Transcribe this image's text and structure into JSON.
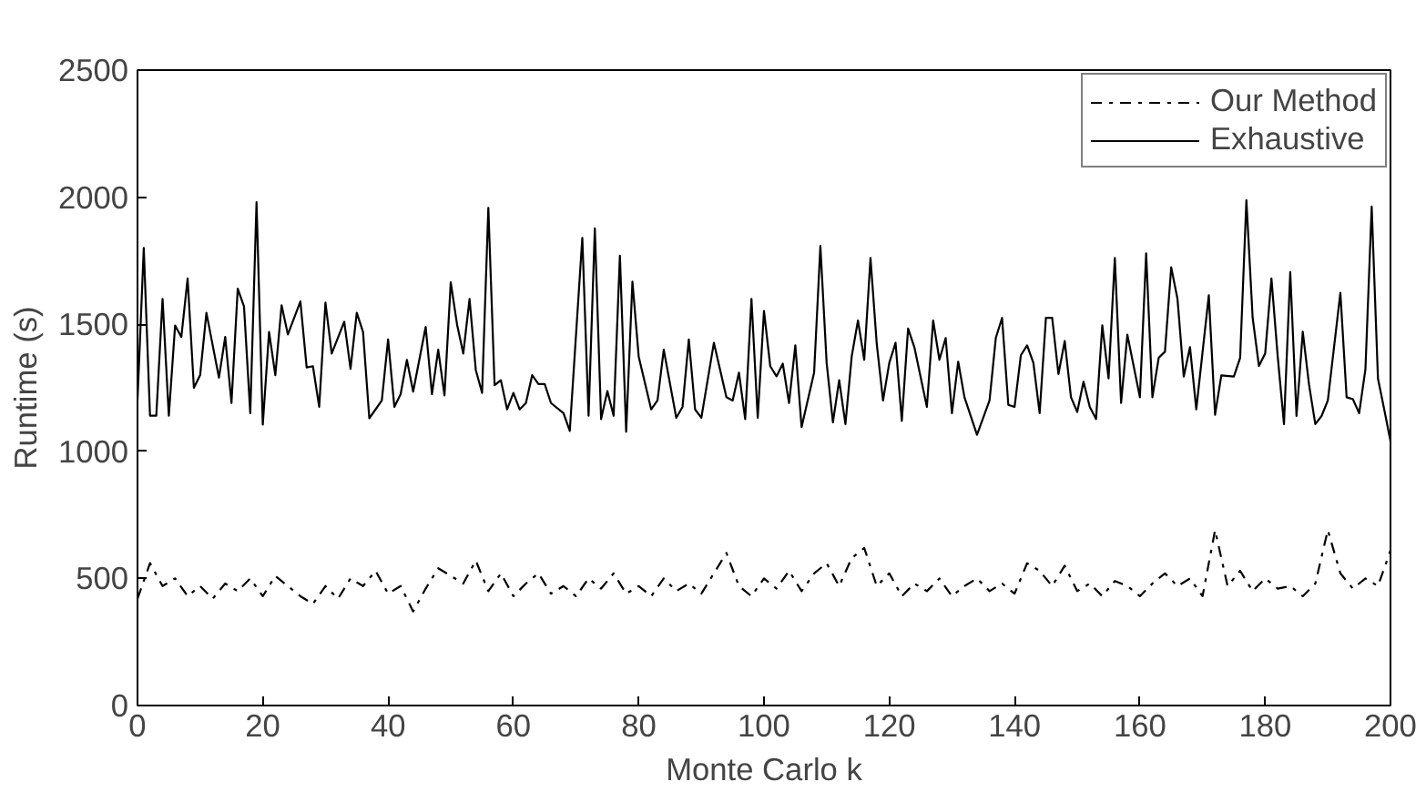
{
  "chart_data": {
    "type": "line",
    "xlabel": "Monte Carlo k",
    "ylabel": "Runtime (s)",
    "xlim": [
      0,
      200
    ],
    "xticks": [
      0,
      20,
      40,
      60,
      80,
      100,
      120,
      140,
      160,
      180,
      200
    ],
    "ylim": [
      0,
      2500
    ],
    "yticks": [
      0,
      500,
      1000,
      1500,
      2000,
      2500
    ],
    "grid": false,
    "legend": "top right",
    "marker": "none",
    "series": [
      {
        "name": "Our Method",
        "color": "#000000",
        "line_style": "dashdot",
        "x": [
          0,
          2,
          4,
          6,
          8,
          10,
          12,
          14,
          16,
          18,
          20,
          22,
          24,
          26,
          28,
          30,
          32,
          34,
          36,
          38,
          40,
          42,
          44,
          46,
          48,
          50,
          52,
          54,
          56,
          58,
          60,
          62,
          64,
          66,
          68,
          70,
          72,
          74,
          76,
          78,
          80,
          82,
          84,
          86,
          88,
          90,
          92,
          94,
          96,
          98,
          100,
          102,
          104,
          106,
          108,
          110,
          112,
          114,
          116,
          118,
          120,
          122,
          124,
          126,
          128,
          130,
          132,
          134,
          136,
          138,
          140,
          142,
          144,
          146,
          148,
          150,
          152,
          154,
          156,
          158,
          160,
          162,
          164,
          166,
          168,
          170,
          172,
          174,
          176,
          178,
          180,
          182,
          184,
          186,
          188,
          190,
          192,
          194,
          196,
          198,
          200
        ],
        "values": [
          420,
          560,
          470,
          500,
          430,
          470,
          420,
          480,
          450,
          500,
          430,
          510,
          470,
          430,
          400,
          470,
          420,
          500,
          470,
          530,
          440,
          470,
          370,
          460,
          540,
          510,
          480,
          570,
          450,
          520,
          430,
          480,
          520,
          440,
          470,
          430,
          500,
          460,
          520,
          440,
          470,
          430,
          500,
          450,
          480,
          440,
          520,
          600,
          470,
          430,
          500,
          460,
          530,
          450,
          520,
          560,
          470,
          580,
          620,
          470,
          520,
          430,
          480,
          450,
          500,
          430,
          470,
          500,
          450,
          480,
          440,
          560,
          530,
          470,
          550,
          450,
          480,
          430,
          490,
          470,
          430,
          480,
          520,
          470,
          500,
          430,
          690,
          470,
          530,
          450,
          500,
          460,
          470,
          430,
          480,
          690,
          520,
          460,
          500,
          470,
          610
        ]
      },
      {
        "name": "Exhaustive",
        "color": "#000000",
        "line_style": "solid",
        "x": [
          0,
          1,
          2,
          3,
          4,
          5,
          6,
          7,
          8,
          9,
          10,
          11,
          13,
          14,
          15,
          16,
          17,
          18,
          19,
          20,
          21,
          22,
          23,
          24,
          26,
          27,
          28,
          29,
          30,
          31,
          33,
          34,
          35,
          36,
          37,
          39,
          40,
          41,
          42,
          43,
          44,
          46,
          47,
          48,
          49,
          50,
          51,
          52,
          53,
          54,
          55,
          56,
          57,
          58,
          59,
          60,
          61,
          62,
          63,
          64,
          65,
          66,
          68,
          69,
          71,
          72,
          73,
          74,
          75,
          76,
          77,
          78,
          79,
          80,
          82,
          83,
          84,
          86,
          87,
          88,
          89,
          90,
          92,
          94,
          95,
          96,
          97,
          98,
          99,
          100,
          101,
          102,
          103,
          104,
          105,
          106,
          108,
          109,
          110,
          111,
          112,
          113,
          114,
          115,
          116,
          117,
          118,
          119,
          120,
          121,
          122,
          123,
          124,
          126,
          127,
          128,
          129,
          130,
          131,
          132,
          134,
          136,
          137,
          138,
          139,
          140,
          141,
          142,
          143,
          144,
          145,
          146,
          147,
          148,
          149,
          150,
          151,
          152,
          153,
          154,
          155,
          156,
          157,
          158,
          160,
          161,
          162,
          163,
          164,
          165,
          166,
          167,
          168,
          169,
          171,
          172,
          173,
          175,
          176,
          177,
          178,
          179,
          180,
          181,
          182,
          183,
          184,
          185,
          186,
          187,
          188,
          189,
          190,
          192,
          193,
          194,
          195,
          196,
          197,
          198,
          199,
          200
        ],
        "values": [
          1200,
          1800,
          1140,
          1140,
          1600,
          1140,
          1495,
          1450,
          1680,
          1250,
          1300,
          1545,
          1290,
          1450,
          1190,
          1640,
          1570,
          1150,
          1980,
          1105,
          1470,
          1300,
          1575,
          1460,
          1590,
          1330,
          1335,
          1175,
          1585,
          1385,
          1510,
          1325,
          1545,
          1470,
          1130,
          1200,
          1440,
          1175,
          1225,
          1360,
          1235,
          1490,
          1225,
          1400,
          1220,
          1665,
          1500,
          1385,
          1600,
          1320,
          1230,
          1958,
          1260,
          1280,
          1165,
          1230,
          1165,
          1190,
          1300,
          1265,
          1265,
          1190,
          1150,
          1080,
          1840,
          1140,
          1877,
          1127,
          1237,
          1140,
          1770,
          1077,
          1668,
          1373,
          1165,
          1200,
          1400,
          1132,
          1175,
          1440,
          1165,
          1132,
          1427,
          1213,
          1200,
          1310,
          1127,
          1600,
          1132,
          1552,
          1335,
          1295,
          1345,
          1190,
          1417,
          1095,
          1310,
          1808,
          1348,
          1114,
          1280,
          1107,
          1373,
          1515,
          1360,
          1761,
          1422,
          1200,
          1348,
          1427,
          1120,
          1483,
          1410,
          1175,
          1515,
          1360,
          1446,
          1150,
          1353,
          1213,
          1065,
          1200,
          1446,
          1525,
          1183,
          1175,
          1378,
          1417,
          1348,
          1150,
          1525,
          1525,
          1304,
          1434,
          1213,
          1155,
          1274,
          1175,
          1127,
          1496,
          1287,
          1761,
          1190,
          1459,
          1213,
          1779,
          1213,
          1368,
          1392,
          1724,
          1600,
          1294,
          1410,
          1165,
          1614,
          1144,
          1299,
          1294,
          1368,
          1988,
          1525,
          1336,
          1385,
          1680,
          1373,
          1107,
          1705,
          1139,
          1471,
          1262,
          1107,
          1139,
          1200,
          1624,
          1213,
          1205,
          1150,
          1323,
          1963,
          1287,
          1165,
          1040
        ]
      }
    ]
  }
}
